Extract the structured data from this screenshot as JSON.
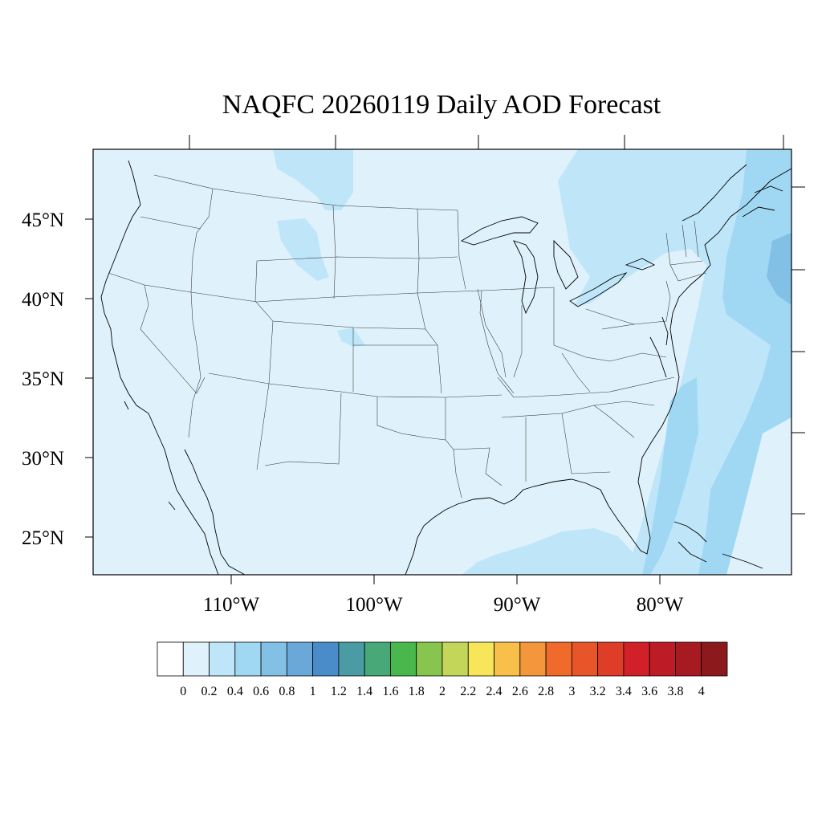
{
  "title": "NAQFC 20260119 Daily AOD Forecast",
  "latitude_labels": [
    "45°N",
    "40°N",
    "35°N",
    "30°N",
    "25°N"
  ],
  "longitude_labels": [
    "110°W",
    "100°W",
    "90°W",
    "80°W"
  ],
  "colorbar": {
    "labels": [
      "0",
      "0.2",
      "0.4",
      "0.6",
      "0.8",
      "1",
      "1.2",
      "1.4",
      "1.6",
      "1.8",
      "2",
      "2.2",
      "2.4",
      "2.6",
      "2.8",
      "3",
      "3.2",
      "3.4",
      "3.6",
      "3.8",
      "4"
    ],
    "colors": [
      "#ffffff",
      "#dff2fb",
      "#bfe6f8",
      "#a0d8f3",
      "#83c0e6",
      "#6aa8da",
      "#4a8bc9",
      "#4a9ba3",
      "#48a877",
      "#49b84c",
      "#87c54f",
      "#c3d65a",
      "#f8e65a",
      "#f8c04a",
      "#f4963c",
      "#f06a2c",
      "#e85529",
      "#de3d28",
      "#d12028",
      "#bd1b25",
      "#a81a22",
      "#8c1a1c"
    ]
  },
  "map": {
    "field_colors": {
      "background": "#dff2fb",
      "level2": "#bfe6f8",
      "level3": "#a0d8f3",
      "level4": "#83c0e6"
    }
  }
}
